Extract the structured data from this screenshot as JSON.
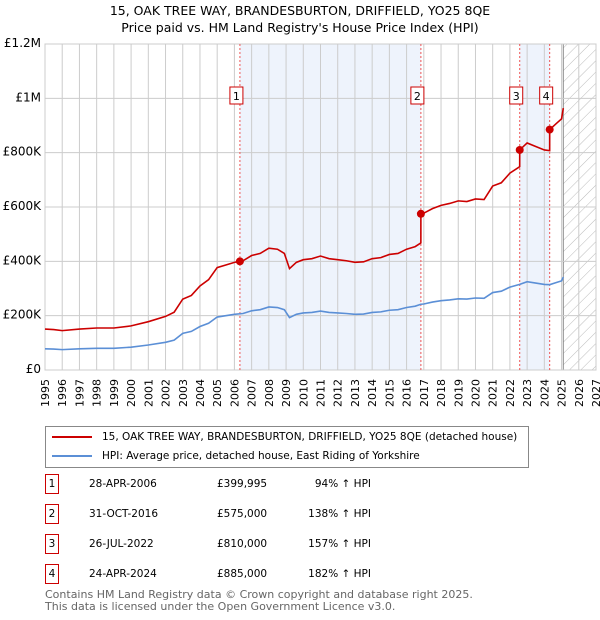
{
  "title": "15, OAK TREE WAY, BRANDESBURTON, DRIFFIELD, YO25 8QE",
  "subtitle": "Price paid vs. HM Land Registry's House Price Index (HPI)",
  "chart_data": {
    "type": "line",
    "ylim": [
      0,
      1200000
    ],
    "xlim": [
      1995,
      2027
    ],
    "y_ticks": [
      {
        "v": 0,
        "label": "£0"
      },
      {
        "v": 200000,
        "label": "£200K"
      },
      {
        "v": 400000,
        "label": "£400K"
      },
      {
        "v": 600000,
        "label": "£600K"
      },
      {
        "v": 800000,
        "label": "£800K"
      },
      {
        "v": 1000000,
        "label": "£1M"
      },
      {
        "v": 1200000,
        "label": "£1.2M"
      }
    ],
    "x_ticks": [
      "1995",
      "1996",
      "1997",
      "1998",
      "1999",
      "2000",
      "2001",
      "2002",
      "2003",
      "2004",
      "2005",
      "2006",
      "2007",
      "2008",
      "2009",
      "2010",
      "2011",
      "2012",
      "2013",
      "2014",
      "2015",
      "2016",
      "2017",
      "2018",
      "2019",
      "2020",
      "2021",
      "2022",
      "2023",
      "2024",
      "2025",
      "2026",
      "2027"
    ],
    "forecast_from": 2025.1,
    "series": [
      {
        "name": "HPI: Average price, detached house, East Riding of Yorkshire",
        "color": "#5b8fd6",
        "x": [
          1995,
          1995.5,
          1996,
          1997,
          1998,
          1999,
          2000,
          2001,
          2002,
          2002.5,
          2003,
          2003.5,
          2004,
          2004.5,
          2005,
          2005.5,
          2006,
          2006.5,
          2007,
          2007.5,
          2008,
          2008.5,
          2008.9,
          2009.2,
          2009.6,
          2010,
          2010.5,
          2011,
          2011.5,
          2012,
          2012.5,
          2013,
          2013.5,
          2014,
          2014.5,
          2015,
          2015.5,
          2016,
          2016.5,
          2016.83,
          2017,
          2017.5,
          2018,
          2018.5,
          2019,
          2019.5,
          2020,
          2020.5,
          2021,
          2021.5,
          2022,
          2022.57,
          2023,
          2023.5,
          2024,
          2024.31,
          2024.7,
          2025,
          2025.1
        ],
        "y": [
          78000,
          77000,
          75000,
          78000,
          80000,
          80000,
          84000,
          92000,
          102000,
          110000,
          135000,
          142000,
          160000,
          172000,
          195000,
          200000,
          205000,
          208000,
          218000,
          222000,
          232000,
          230000,
          222000,
          193000,
          205000,
          210000,
          212000,
          217000,
          212000,
          210000,
          208000,
          205000,
          206000,
          212000,
          214000,
          220000,
          222000,
          230000,
          235000,
          242000,
          243000,
          250000,
          255000,
          258000,
          262000,
          261000,
          265000,
          264000,
          285000,
          290000,
          305000,
          315000,
          325000,
          320000,
          315000,
          314000,
          322000,
          328000,
          342000
        ]
      },
      {
        "name": "15, OAK TREE WAY, BRANDESBURTON, DRIFFIELD, YO25 8QE (detached house)",
        "color": "#cc0000",
        "derived_from_hpi": true
      }
    ],
    "sales": [
      {
        "id": "1",
        "x": 2006.32,
        "price": 399995
      },
      {
        "id": "2",
        "x": 2016.83,
        "price": 575000
      },
      {
        "id": "3",
        "x": 2022.57,
        "price": 810000
      },
      {
        "id": "4",
        "x": 2024.31,
        "price": 885000
      }
    ]
  },
  "legend": {
    "red": "15, OAK TREE WAY, BRANDESBURTON, DRIFFIELD, YO25 8QE (detached house)",
    "blue": "HPI: Average price, detached house, East Riding of Yorkshire"
  },
  "transactions": [
    {
      "num": "1",
      "date": "28-APR-2006",
      "price": "£399,995",
      "hpi": "94% ↑ HPI"
    },
    {
      "num": "2",
      "date": "31-OCT-2016",
      "price": "£575,000",
      "hpi": "138% ↑ HPI"
    },
    {
      "num": "3",
      "date": "26-JUL-2022",
      "price": "£810,000",
      "hpi": "157% ↑ HPI"
    },
    {
      "num": "4",
      "date": "24-APR-2024",
      "price": "£885,000",
      "hpi": "182% ↑ HPI"
    }
  ],
  "footer": {
    "line1": "Contains HM Land Registry data © Crown copyright and database right 2025.",
    "line2": "This data is licensed under the Open Government Licence v3.0."
  }
}
